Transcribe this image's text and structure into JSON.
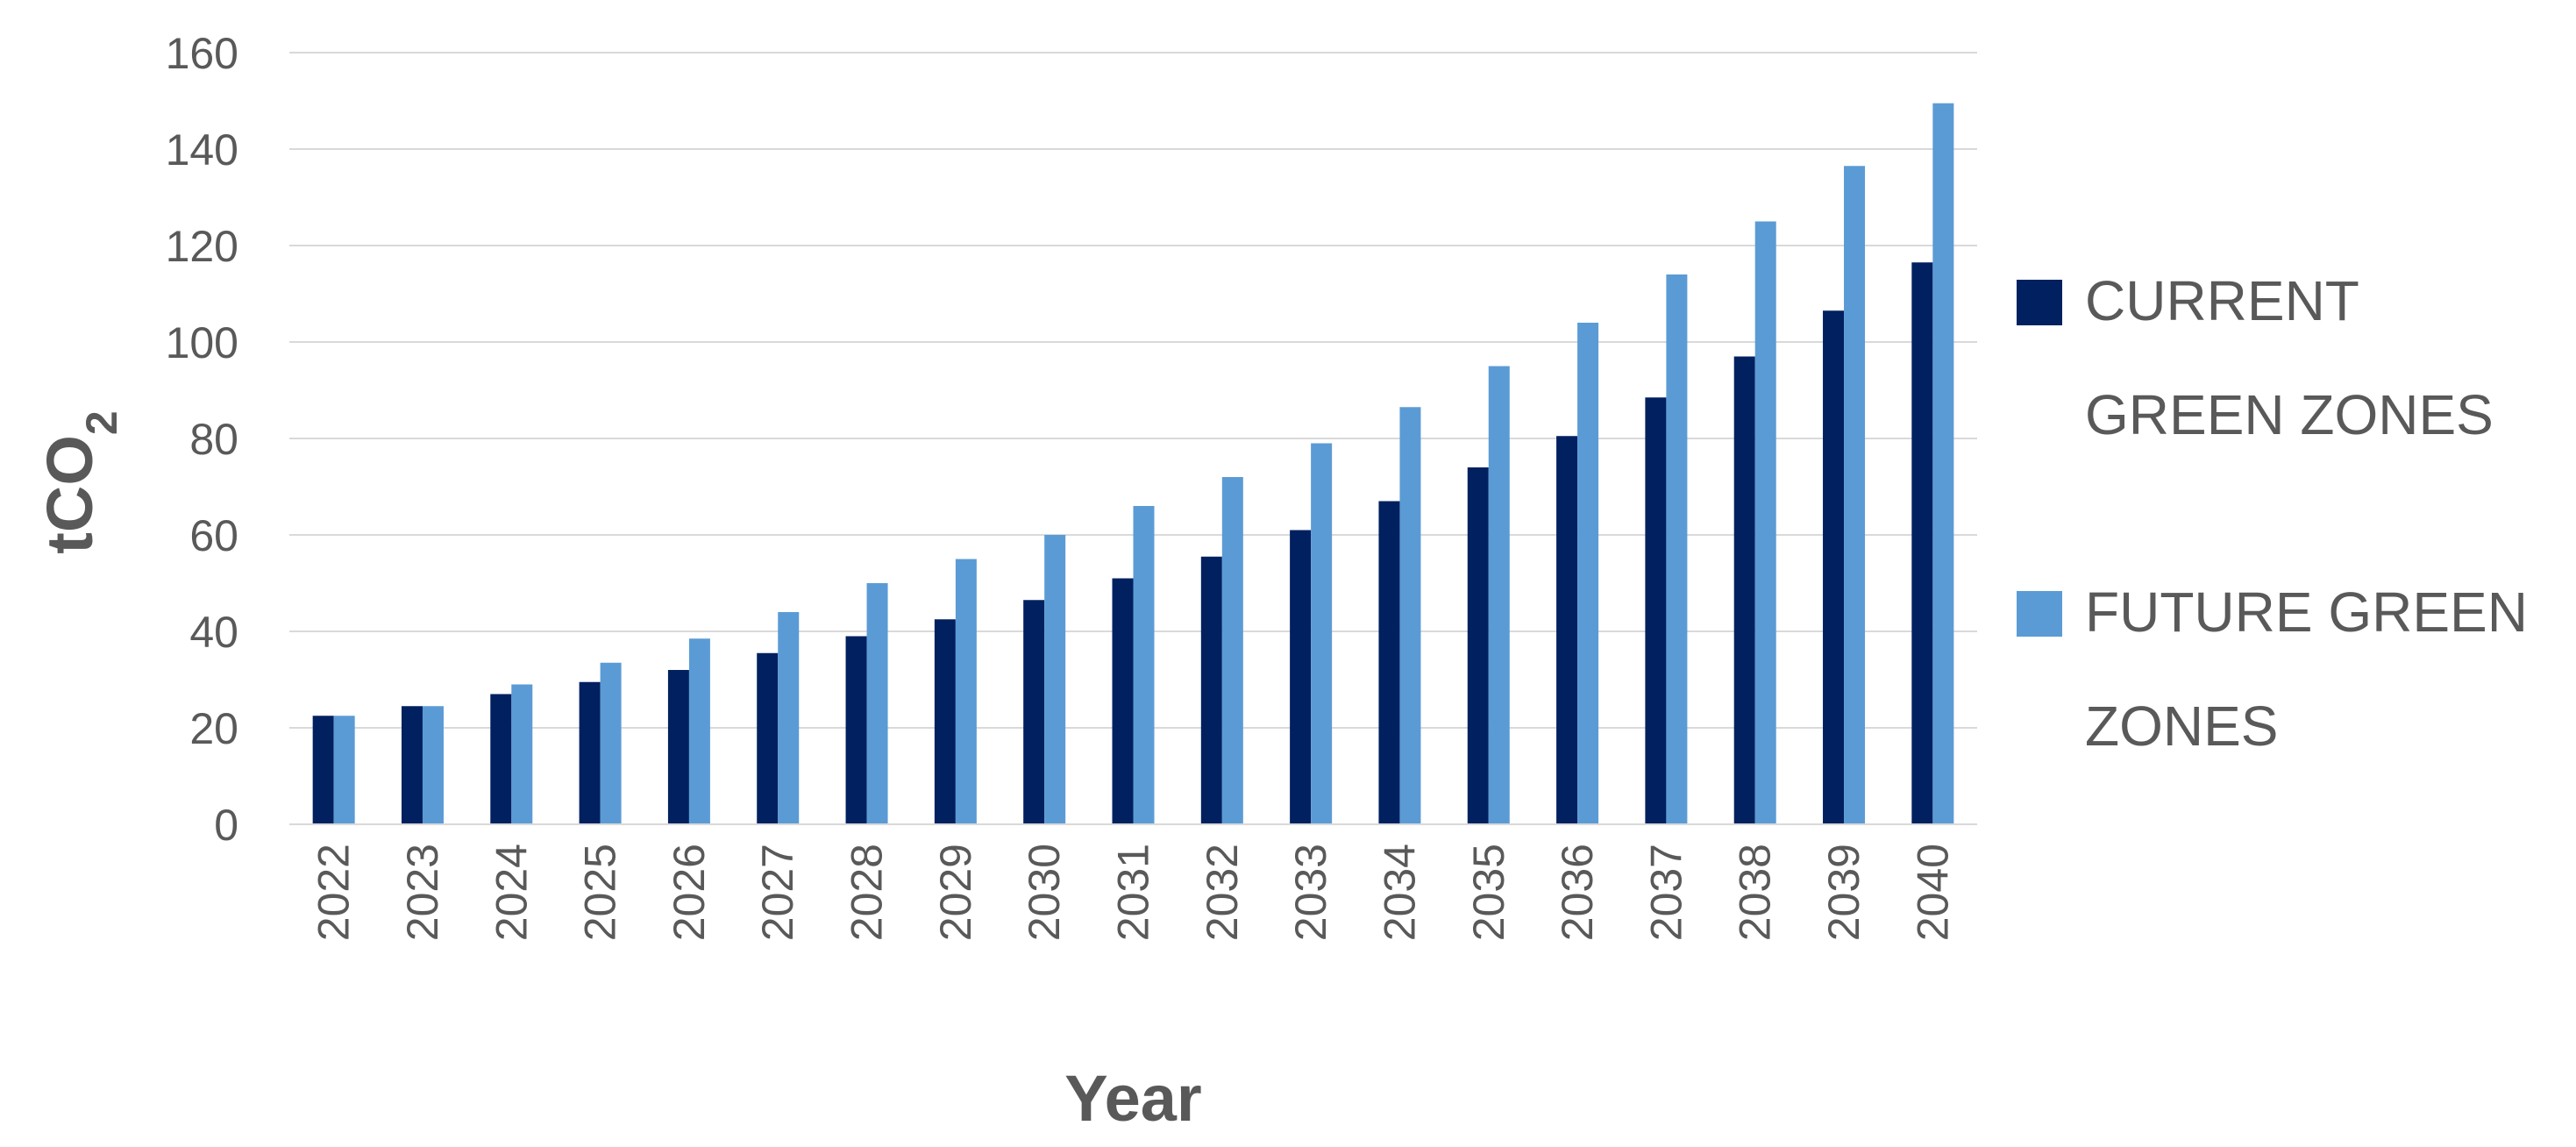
{
  "colors": {
    "current": "#002060",
    "future": "#5B9BD5",
    "grid": "#d9d9d9",
    "text": "#595959"
  },
  "chart_data": {
    "type": "bar",
    "title": "",
    "xlabel": "Year",
    "ylabel_main": "tCO",
    "ylabel_sub": "2",
    "ylim": [
      0,
      160
    ],
    "yticks": [
      "0",
      "20",
      "40",
      "60",
      "80",
      "100",
      "120",
      "140",
      "160"
    ],
    "grid": true,
    "legend_position": "right",
    "categories": [
      "2022",
      "2023",
      "2024",
      "2025",
      "2026",
      "2027",
      "2028",
      "2029",
      "2030",
      "2031",
      "2032",
      "2033",
      "2034",
      "2035",
      "2036",
      "2037",
      "2038",
      "2039",
      "2040"
    ],
    "series": [
      {
        "name_lines": [
          "CURRENT",
          "GREEN ZONES"
        ],
        "values": [
          22.5,
          24.5,
          27,
          29.5,
          32,
          35.5,
          39,
          42.5,
          46.5,
          51,
          55.5,
          61,
          67,
          74,
          80.5,
          88.5,
          97,
          106.5,
          116.5
        ]
      },
      {
        "name_lines": [
          "FUTURE GREEN",
          "ZONES"
        ],
        "values": [
          22.5,
          24.5,
          29,
          33.5,
          38.5,
          44,
          50,
          55,
          60,
          66,
          72,
          79,
          86.5,
          95,
          104,
          114,
          125,
          136.5,
          149.5
        ]
      }
    ]
  }
}
